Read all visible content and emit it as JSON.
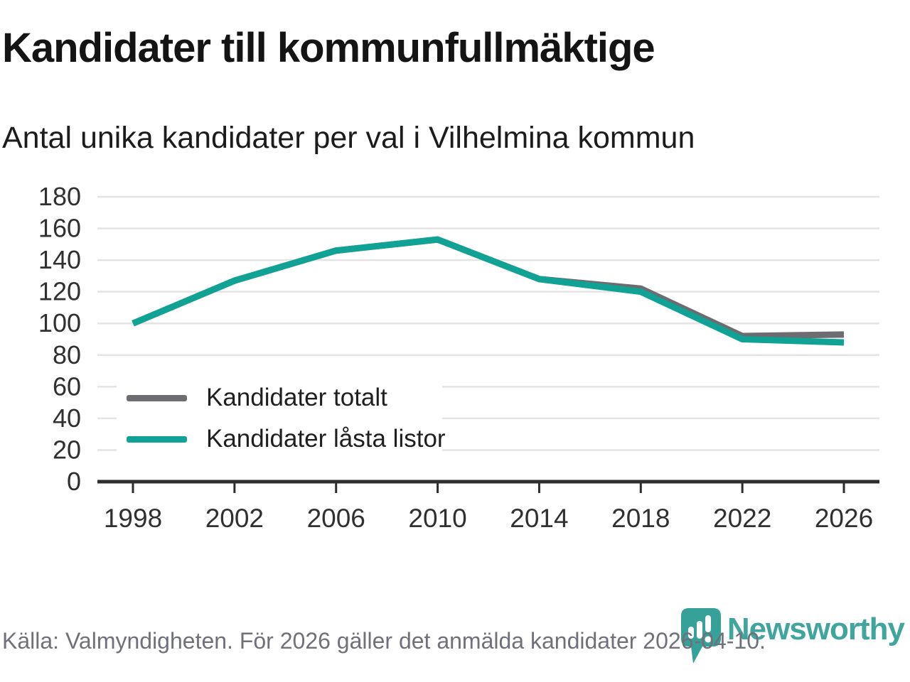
{
  "header": {
    "title": "Kandidater till kommunfullmäktige",
    "subtitle": "Antal unika kandidater per val i Vilhelmina kommun"
  },
  "footer": {
    "source_note": "Källa: Valmyndigheten. För 2026 gäller det anmälda kandidater 2026-04-10.",
    "brand_wordmark": "Newsworthy"
  },
  "colors": {
    "total_line": "#6c6c71",
    "locked_list_line": "#10a294",
    "gridline": "#e4e4e4",
    "axis": "#2d2d2d",
    "axis_label": "#303030",
    "brand_teal": "#36a198",
    "muted_text": "#70707a"
  },
  "chart_data": {
    "type": "line",
    "title": "Kandidater till kommunfullmäktige",
    "subtitle": "Antal unika kandidater per val i Vilhelmina kommun",
    "x": [
      1998,
      2002,
      2006,
      2010,
      2014,
      2018,
      2022,
      2026
    ],
    "x_tick_labels": [
      "1998",
      "2002",
      "2006",
      "2010",
      "2014",
      "2018",
      "2022",
      "2026"
    ],
    "series": [
      {
        "name": "Kandidater totalt",
        "color": "#6c6c71",
        "values": [
          100,
          127,
          146,
          153,
          128,
          122,
          92,
          93
        ]
      },
      {
        "name": "Kandidater låsta listor",
        "color": "#10a294",
        "values": [
          100,
          127,
          146,
          153,
          128,
          120,
          90,
          88
        ]
      }
    ],
    "ylim": [
      0,
      180
    ],
    "y_ticks": [
      0,
      20,
      40,
      60,
      80,
      100,
      120,
      140,
      160,
      180
    ],
    "grid": "horizontal",
    "legend_position": "inside-bottom-left"
  }
}
